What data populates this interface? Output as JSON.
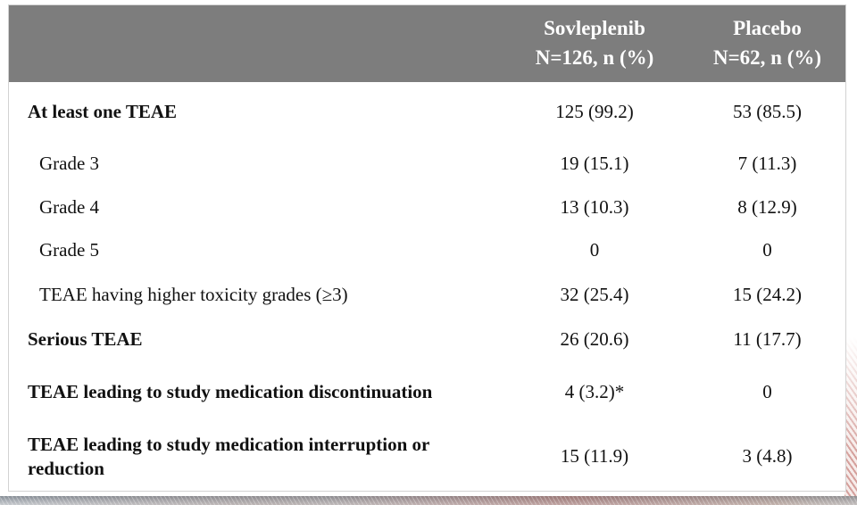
{
  "table": {
    "header": {
      "col2": {
        "line1": "Sovleplenib",
        "line2": "N=126, n (%)"
      },
      "col3": {
        "line1": "Placebo",
        "line2": "N=62, n (%)"
      }
    },
    "rows": [
      {
        "label": "At least one TEAE",
        "sovleplenib": "125 (99.2)",
        "placebo": "53 (85.5)",
        "emphasis": true,
        "level": 0
      },
      {
        "label": "Grade 3",
        "sovleplenib": "19 (15.1)",
        "placebo": "7 (11.3)",
        "emphasis": false,
        "level": 1
      },
      {
        "label": "Grade 4",
        "sovleplenib": "13 (10.3)",
        "placebo": "8 (12.9)",
        "emphasis": false,
        "level": 1
      },
      {
        "label": "Grade 5",
        "sovleplenib": "0",
        "placebo": "0",
        "emphasis": false,
        "level": 1
      },
      {
        "label": "TEAE having higher toxicity grades (≥3)",
        "sovleplenib": "32 (25.4)",
        "placebo": "15 (24.2)",
        "emphasis": false,
        "level": 1
      },
      {
        "label": "Serious TEAE",
        "sovleplenib": "26 (20.6)",
        "placebo": "11 (17.7)",
        "emphasis": true,
        "level": 0
      },
      {
        "label": "TEAE leading to study medication discontinuation",
        "sovleplenib": "4 (3.2)*",
        "placebo": "0",
        "emphasis": true,
        "level": 0
      },
      {
        "label": "TEAE leading to study medication interruption or reduction",
        "sovleplenib": "15 (11.9)",
        "placebo": "3 (4.8)",
        "emphasis": true,
        "level": 0
      }
    ]
  },
  "colors": {
    "header_bg": "#7d7d7d",
    "header_text": "#ffffff",
    "body_text": "#111111",
    "card_border": "#d2d2d2",
    "stripe_pink": "#d5a09c",
    "band_gray": "#868d95",
    "band_red_accent": "#b25c4e"
  }
}
